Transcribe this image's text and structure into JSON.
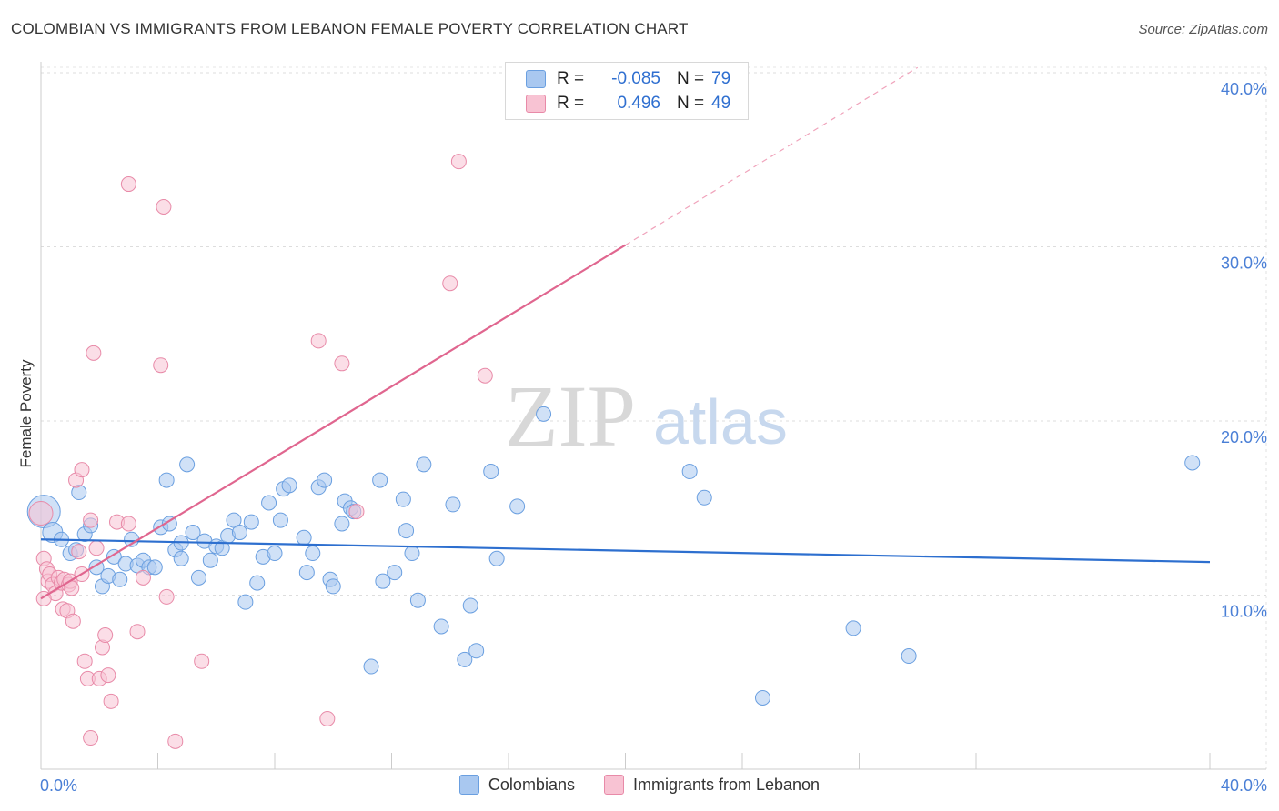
{
  "title": "COLOMBIAN VS IMMIGRANTS FROM LEBANON FEMALE POVERTY CORRELATION CHART",
  "source": "Source: ZipAtlas.com",
  "legend": {
    "rows": [
      {
        "r_label": "R =",
        "r_value": "-0.085",
        "n_label": "N =",
        "n_value": "79",
        "color": "#a9c8f0",
        "border": "#6a9fe0"
      },
      {
        "r_label": "R =",
        "r_value": "0.496",
        "n_label": "N =",
        "n_value": "49",
        "color": "#f8c3d3",
        "border": "#e88aa8"
      }
    ]
  },
  "bottom_legend": [
    {
      "label": "Colombians",
      "color": "#a9c8f0",
      "border": "#6a9fe0"
    },
    {
      "label": "Immigrants from Lebanon",
      "color": "#f8c3d3",
      "border": "#e88aa8"
    }
  ],
  "watermark": {
    "zip": "ZIP",
    "atlas": "atlas"
  },
  "chart_data": {
    "type": "scatter",
    "title": "COLOMBIAN VS IMMIGRANTS FROM LEBANON FEMALE POVERTY CORRELATION CHART",
    "xlabel": "",
    "ylabel": "Female Poverty",
    "xlim": [
      0,
      40
    ],
    "ylim": [
      0,
      40
    ],
    "x_tick_labels": [
      "0.0%",
      "40.0%"
    ],
    "y_ticks": [
      10,
      20,
      30,
      40
    ],
    "y_tick_labels": [
      "10.0%",
      "20.0%",
      "30.0%",
      "40.0%"
    ],
    "grid": true,
    "series": [
      {
        "name": "Colombians",
        "color": "#a9c8f0",
        "edge": "#6a9fe0",
        "trend": {
          "x": [
            0,
            40
          ],
          "y": [
            13.2,
            11.9
          ],
          "color": "#2d6fcf",
          "dashed_extension": false
        },
        "points": [
          [
            0.1,
            14.8
          ],
          [
            0.4,
            13.6
          ],
          [
            0.7,
            13.2
          ],
          [
            1.0,
            12.4
          ],
          [
            1.3,
            15.9
          ],
          [
            1.5,
            13.5
          ],
          [
            1.7,
            14.0
          ],
          [
            1.9,
            11.6
          ],
          [
            2.1,
            10.5
          ],
          [
            2.3,
            11.1
          ],
          [
            2.5,
            12.2
          ],
          [
            2.7,
            10.9
          ],
          [
            2.9,
            11.8
          ],
          [
            3.1,
            13.2
          ],
          [
            3.3,
            11.7
          ],
          [
            3.5,
            12.0
          ],
          [
            3.7,
            11.6
          ],
          [
            3.9,
            11.6
          ],
          [
            4.1,
            13.9
          ],
          [
            4.3,
            16.6
          ],
          [
            4.4,
            14.1
          ],
          [
            4.6,
            12.6
          ],
          [
            4.8,
            12.1
          ],
          [
            5.0,
            17.5
          ],
          [
            5.2,
            13.6
          ],
          [
            5.4,
            11.0
          ],
          [
            5.6,
            13.1
          ],
          [
            5.8,
            12.0
          ],
          [
            6.0,
            12.8
          ],
          [
            6.2,
            12.7
          ],
          [
            6.4,
            13.4
          ],
          [
            6.6,
            14.3
          ],
          [
            6.8,
            13.6
          ],
          [
            7.0,
            9.6
          ],
          [
            7.2,
            14.2
          ],
          [
            7.4,
            10.7
          ],
          [
            7.6,
            12.2
          ],
          [
            7.8,
            15.3
          ],
          [
            8.0,
            12.4
          ],
          [
            8.2,
            14.3
          ],
          [
            8.3,
            16.1
          ],
          [
            8.5,
            16.3
          ],
          [
            9.0,
            13.3
          ],
          [
            9.1,
            11.3
          ],
          [
            9.3,
            12.4
          ],
          [
            9.5,
            16.2
          ],
          [
            9.7,
            16.6
          ],
          [
            9.9,
            10.9
          ],
          [
            10.0,
            10.5
          ],
          [
            10.3,
            14.1
          ],
          [
            10.4,
            15.4
          ],
          [
            10.6,
            15.0
          ],
          [
            10.7,
            14.8
          ],
          [
            11.3,
            5.9
          ],
          [
            11.6,
            16.6
          ],
          [
            11.7,
            10.8
          ],
          [
            12.1,
            11.3
          ],
          [
            12.4,
            15.5
          ],
          [
            12.5,
            13.7
          ],
          [
            12.7,
            12.4
          ],
          [
            12.9,
            9.7
          ],
          [
            13.1,
            17.5
          ],
          [
            13.7,
            8.2
          ],
          [
            14.1,
            15.2
          ],
          [
            14.5,
            6.3
          ],
          [
            14.7,
            9.4
          ],
          [
            14.9,
            6.8
          ],
          [
            15.4,
            17.1
          ],
          [
            15.6,
            12.1
          ],
          [
            16.3,
            15.1
          ],
          [
            17.2,
            20.4
          ],
          [
            22.2,
            17.1
          ],
          [
            22.7,
            15.6
          ],
          [
            24.7,
            4.1
          ],
          [
            27.8,
            8.1
          ],
          [
            29.7,
            6.5
          ],
          [
            39.4,
            17.6
          ],
          [
            4.8,
            13.0
          ],
          [
            1.2,
            12.6
          ]
        ]
      },
      {
        "name": "Immigrants from Lebanon",
        "color": "#f8c3d3",
        "edge": "#e88aa8",
        "trend": {
          "x": [
            0,
            20
          ],
          "y": [
            9.8,
            30.1
          ],
          "dashed_to": [
            30,
            40.3
          ],
          "color": "#e0668f"
        },
        "points": [
          [
            0.0,
            14.7
          ],
          [
            0.1,
            12.1
          ],
          [
            0.2,
            11.5
          ],
          [
            0.25,
            10.8
          ],
          [
            0.3,
            11.2
          ],
          [
            0.4,
            10.6
          ],
          [
            0.5,
            10.1
          ],
          [
            0.6,
            11.0
          ],
          [
            0.7,
            10.7
          ],
          [
            0.75,
            9.2
          ],
          [
            0.8,
            10.9
          ],
          [
            0.9,
            9.1
          ],
          [
            0.95,
            10.6
          ],
          [
            1.0,
            10.8
          ],
          [
            1.05,
            10.4
          ],
          [
            1.1,
            8.5
          ],
          [
            1.2,
            16.6
          ],
          [
            1.3,
            12.5
          ],
          [
            1.4,
            11.2
          ],
          [
            1.4,
            17.2
          ],
          [
            1.5,
            6.2
          ],
          [
            1.6,
            5.2
          ],
          [
            1.7,
            14.3
          ],
          [
            1.7,
            1.8
          ],
          [
            1.8,
            23.9
          ],
          [
            1.9,
            12.7
          ],
          [
            2.0,
            5.2
          ],
          [
            2.1,
            7.0
          ],
          [
            2.2,
            7.7
          ],
          [
            2.3,
            5.4
          ],
          [
            2.4,
            3.9
          ],
          [
            2.6,
            14.2
          ],
          [
            3.0,
            14.1
          ],
          [
            3.0,
            33.6
          ],
          [
            3.3,
            7.9
          ],
          [
            3.5,
            11.0
          ],
          [
            4.1,
            23.2
          ],
          [
            4.2,
            32.3
          ],
          [
            4.3,
            9.9
          ],
          [
            4.6,
            1.6
          ],
          [
            5.5,
            6.2
          ],
          [
            9.5,
            24.6
          ],
          [
            9.8,
            2.9
          ],
          [
            10.3,
            23.3
          ],
          [
            10.8,
            14.8
          ],
          [
            14.0,
            27.9
          ],
          [
            14.3,
            34.9
          ],
          [
            15.2,
            22.6
          ],
          [
            0.1,
            9.8
          ]
        ]
      }
    ]
  }
}
